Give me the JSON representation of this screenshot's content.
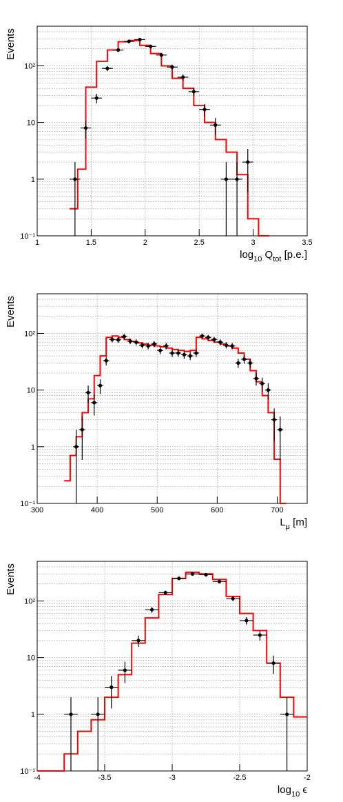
{
  "colors": {
    "simulation": "#ff0000",
    "data": "#000000",
    "grid": "#888888"
  },
  "chart_data": [
    {
      "type": "histogram",
      "ylabel": "Events",
      "xlabel": {
        "main": "log",
        "sub1": "10",
        "mid": " Q",
        "sub2": "tot",
        "tail": " [p.e.]"
      },
      "xlim": [
        1,
        3.5
      ],
      "ylim": [
        0.1,
        500
      ],
      "yscale": "log",
      "grid": true,
      "x_ticks": [
        "1",
        "1.5",
        "2",
        "2.5",
        "3",
        "3.5"
      ],
      "y_ticks": [
        "10⁻¹",
        "1",
        "10",
        "10²"
      ],
      "series": [
        {
          "kind": "simulation",
          "bin_edges": [
            1.3,
            1.375,
            1.45,
            1.55,
            1.65,
            1.75,
            1.85,
            1.95,
            2.05,
            2.15,
            2.25,
            2.35,
            2.45,
            2.55,
            2.65,
            2.75,
            2.85,
            2.95,
            3.05,
            3.15
          ],
          "values": [
            0.3,
            1.5,
            42,
            120,
            190,
            265,
            280,
            230,
            165,
            100,
            60,
            40,
            20,
            10,
            5,
            3,
            1.2,
            0.2,
            0.1
          ]
        },
        {
          "kind": "data",
          "x": [
            1.35,
            1.45,
            1.55,
            1.65,
            1.75,
            1.85,
            1.95,
            2.05,
            2.15,
            2.25,
            2.35,
            2.45,
            2.55,
            2.65,
            2.75,
            2.85,
            2.95
          ],
          "values": [
            1,
            8,
            27,
            90,
            190,
            270,
            290,
            220,
            155,
            95,
            63,
            35,
            17,
            9,
            1,
            1,
            2
          ]
        }
      ]
    },
    {
      "type": "histogram",
      "ylabel": "Events",
      "xlabel": {
        "main": "L",
        "sub1": "μ",
        "mid": "",
        "sub2": "",
        "tail": " [m]"
      },
      "xlim": [
        300,
        750
      ],
      "ylim": [
        0.1,
        500
      ],
      "yscale": "log",
      "grid": true,
      "x_ticks": [
        "300",
        "400",
        "500",
        "600",
        "700"
      ],
      "y_ticks": [
        "10⁻¹",
        "1",
        "10",
        "10²"
      ],
      "series": [
        {
          "kind": "simulation",
          "bin_edges": [
            345,
            355,
            365,
            375,
            385,
            395,
            405,
            415,
            425,
            435,
            445,
            455,
            465,
            475,
            485,
            495,
            505,
            515,
            525,
            535,
            545,
            555,
            565,
            575,
            585,
            595,
            605,
            615,
            625,
            635,
            645,
            655,
            665,
            675,
            685,
            695,
            705,
            715
          ],
          "values": [
            0.25,
            0.7,
            1.5,
            4,
            7,
            18,
            40,
            85,
            90,
            85,
            78,
            72,
            68,
            65,
            62,
            60,
            58,
            55,
            52,
            50,
            48,
            50,
            85,
            80,
            75,
            70,
            65,
            60,
            55,
            45,
            35,
            22,
            14,
            8,
            4,
            0.6,
            0.1
          ]
        },
        {
          "kind": "data",
          "x": [
            365,
            375,
            385,
            395,
            405,
            415,
            425,
            435,
            445,
            455,
            465,
            475,
            485,
            495,
            505,
            515,
            525,
            535,
            545,
            555,
            565,
            575,
            585,
            595,
            605,
            615,
            625,
            635,
            645,
            655,
            665,
            675,
            685,
            695,
            705
          ],
          "values": [
            1,
            2,
            9,
            6,
            12,
            33,
            78,
            77,
            88,
            73,
            70,
            62,
            60,
            65,
            50,
            60,
            45,
            45,
            42,
            40,
            45,
            90,
            85,
            78,
            70,
            62,
            60,
            30,
            35,
            30,
            16,
            13,
            10,
            3,
            2
          ]
        }
      ]
    },
    {
      "type": "histogram",
      "ylabel": "Events",
      "xlabel": {
        "main": "log",
        "sub1": "10",
        "mid": " ϵ",
        "sub2": "",
        "tail": ""
      },
      "xlim": [
        -4,
        -2
      ],
      "ylim": [
        0.1,
        500
      ],
      "yscale": "log",
      "grid": true,
      "x_ticks": [
        "-4",
        "-3.5",
        "-3",
        "-2.5",
        "-2"
      ],
      "y_ticks": [
        "10⁻¹",
        "1",
        "10",
        "10²"
      ],
      "series": [
        {
          "kind": "simulation",
          "bin_edges": [
            -4.0,
            -3.8,
            -3.7,
            -3.6,
            -3.5,
            -3.4,
            -3.3,
            -3.2,
            -3.1,
            -3.0,
            -2.9,
            -2.8,
            -2.7,
            -2.6,
            -2.5,
            -2.4,
            -2.3,
            -2.2,
            -2.1,
            -2.0
          ],
          "values": [
            0.1,
            0.2,
            0.5,
            0.8,
            2,
            5,
            18,
            50,
            130,
            250,
            320,
            300,
            240,
            120,
            60,
            30,
            8,
            2,
            0.9
          ]
        },
        {
          "kind": "data",
          "x": [
            -3.75,
            -3.55,
            -3.45,
            -3.35,
            -3.25,
            -3.15,
            -3.05,
            -2.95,
            -2.85,
            -2.75,
            -2.65,
            -2.55,
            -2.45,
            -2.35,
            -2.25,
            -2.15
          ],
          "values": [
            1,
            1,
            3,
            6,
            20,
            70,
            140,
            250,
            300,
            290,
            220,
            110,
            45,
            25,
            8,
            1
          ]
        }
      ]
    }
  ]
}
